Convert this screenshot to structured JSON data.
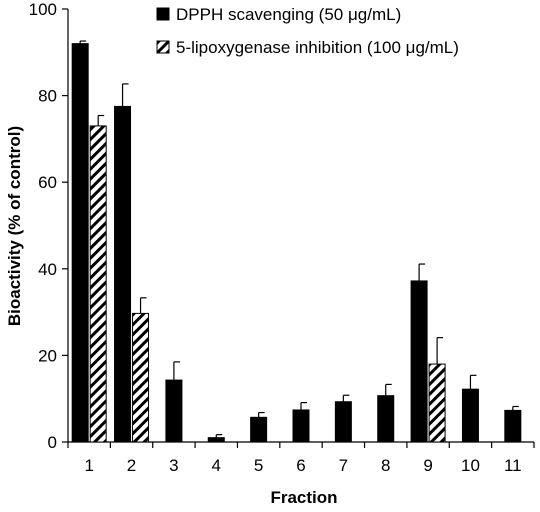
{
  "chart_data": {
    "type": "bar",
    "xlabel": "Fraction",
    "ylabel": "Bioactivity (% of control)",
    "ylim": [
      0,
      100
    ],
    "yticks": [
      0,
      20,
      40,
      60,
      80,
      100
    ],
    "grid": false,
    "legend_position": "top-right",
    "categories": [
      "1",
      "2",
      "3",
      "4",
      "5",
      "6",
      "7",
      "8",
      "9",
      "10",
      "11"
    ],
    "series": [
      {
        "name": "DPPH scavenging (50 μg/mL)",
        "pattern": "solid",
        "color": "#000000",
        "values": [
          92,
          77.5,
          14.3,
          1,
          5.7,
          7.4,
          9.3,
          10.7,
          37.2,
          12.2,
          7.3
        ],
        "errors": [
          0.6,
          5.2,
          4.2,
          0.7,
          1.1,
          1.7,
          1.5,
          2.6,
          3.9,
          3.2,
          0.9
        ]
      },
      {
        "name": "5-lipoxygenase  inhibition  (100 μg/mL)",
        "pattern": "diagonal-hatch",
        "color": "#000000",
        "values": [
          73,
          29.7,
          null,
          null,
          null,
          null,
          null,
          null,
          18,
          null,
          null
        ],
        "errors": [
          2.4,
          3.6,
          null,
          null,
          null,
          null,
          null,
          null,
          6.1,
          null,
          null
        ]
      }
    ]
  }
}
